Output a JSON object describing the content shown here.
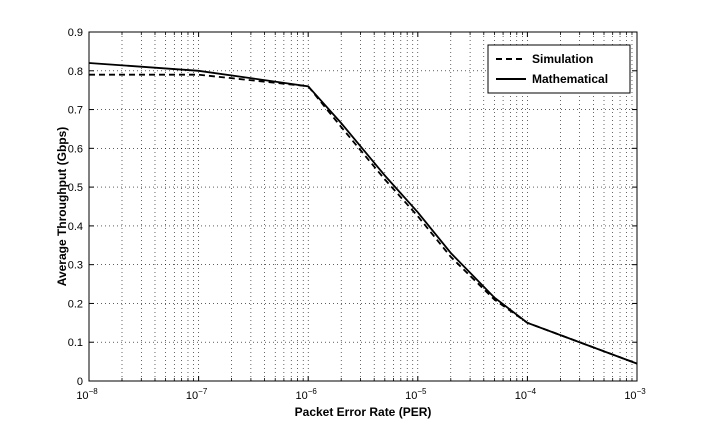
{
  "chart_data": {
    "type": "line",
    "title": "",
    "xlabel": "Packet Error Rate (PER)",
    "ylabel": "Average Throughput (Gbps)",
    "xscale": "log",
    "xlim": [
      1e-08,
      0.001
    ],
    "ylim": [
      0,
      0.9
    ],
    "grid": true,
    "legend_position": "top-right",
    "x_ticks": [
      {
        "value": 1e-08,
        "base": "10",
        "exp": "−8"
      },
      {
        "value": 1e-07,
        "base": "10",
        "exp": "−7"
      },
      {
        "value": 1e-06,
        "base": "10",
        "exp": "−6"
      },
      {
        "value": 1e-05,
        "base": "10",
        "exp": "−5"
      },
      {
        "value": 0.0001,
        "base": "10",
        "exp": "−4"
      },
      {
        "value": 0.001,
        "base": "10",
        "exp": "−3"
      }
    ],
    "y_ticks": [
      "0",
      "0.1",
      "0.2",
      "0.3",
      "0.4",
      "0.5",
      "0.6",
      "0.7",
      "0.8",
      "0.9"
    ],
    "series": [
      {
        "name": "Simulation",
        "style": "dashed",
        "color": "#000000",
        "x": [
          1e-08,
          1e-07,
          1e-06,
          2e-06,
          5e-06,
          1e-05,
          2e-05,
          5e-05,
          0.0001,
          0.001
        ],
        "y": [
          0.79,
          0.79,
          0.76,
          0.655,
          0.52,
          0.425,
          0.32,
          0.21,
          0.15,
          0.045
        ]
      },
      {
        "name": "Mathematical",
        "style": "solid",
        "color": "#000000",
        "x": [
          1e-08,
          1e-07,
          1e-06,
          2e-06,
          5e-06,
          1e-05,
          2e-05,
          5e-05,
          0.0001,
          0.001
        ],
        "y": [
          0.82,
          0.8,
          0.76,
          0.665,
          0.53,
          0.435,
          0.33,
          0.215,
          0.15,
          0.045
        ]
      }
    ]
  }
}
